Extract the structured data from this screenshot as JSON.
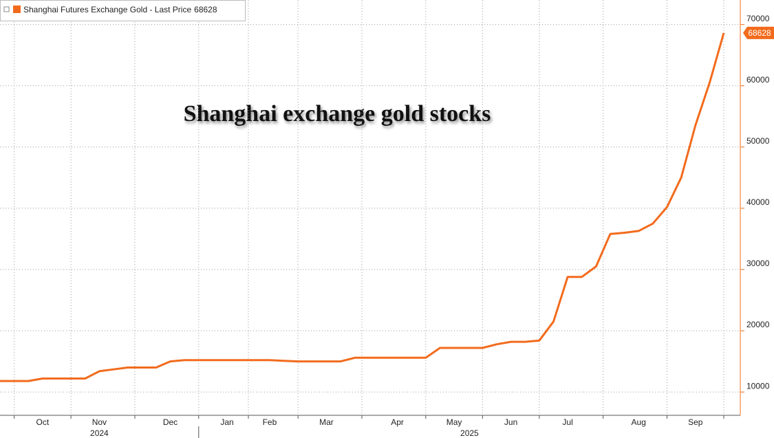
{
  "chart_data": {
    "type": "line",
    "annotation": "Shanghai exchange gold stocks",
    "categories": [
      null,
      null,
      null,
      "Oct",
      null,
      null,
      null,
      "Nov",
      null,
      null,
      null,
      null,
      "Dec",
      null,
      null,
      null,
      "Jan",
      null,
      null,
      "Feb",
      null,
      null,
      null,
      "Mar",
      null,
      null,
      null,
      null,
      "Apr",
      null,
      null,
      null,
      "May",
      null,
      null,
      null,
      "Jun",
      null,
      null,
      null,
      "Jul",
      null,
      null,
      null,
      null,
      "Aug",
      null,
      null,
      null,
      "Sep",
      null,
      null
    ],
    "year_labels": [
      "2024",
      "2025"
    ],
    "series": [
      {
        "name": "Shanghai Futures Exchange Gold - Last Price",
        "color": "#f26b1d",
        "values": [
          11800,
          11800,
          11800,
          12200,
          12200,
          12200,
          12200,
          13400,
          13700,
          14000,
          14000,
          14000,
          15000,
          15200,
          15200,
          15200,
          15200,
          15200,
          15200,
          15200,
          15100,
          15000,
          15000,
          15000,
          15000,
          15600,
          15600,
          15600,
          15600,
          15600,
          15600,
          17200,
          17200,
          17200,
          17200,
          17800,
          18200,
          18200,
          18400,
          21500,
          28800,
          28800,
          30500,
          35800,
          36000,
          36300,
          37500,
          40200,
          45000,
          53500,
          60500,
          68628
        ]
      }
    ],
    "ylim": [
      6200,
      74000
    ],
    "yticks": [
      10000,
      20000,
      30000,
      40000,
      50000,
      60000,
      70000
    ],
    "grid": true
  }
}
